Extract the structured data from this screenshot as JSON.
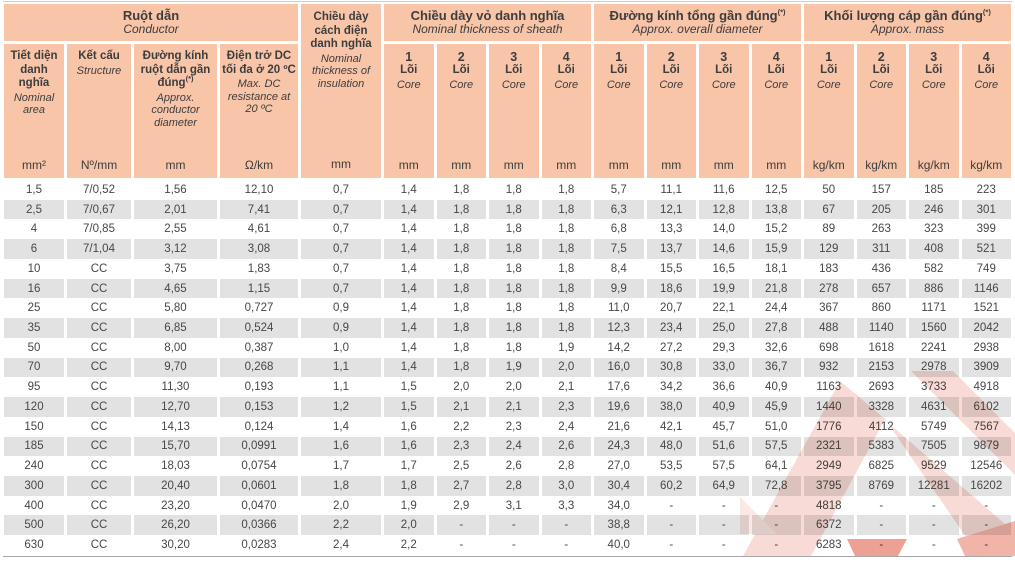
{
  "colors": {
    "header_bg": "#f8c5a9",
    "row_alt_bg": "#e2e2e2",
    "text": "#474747",
    "watermark_light": "#f8dbd6",
    "watermark_red": "#eda094"
  },
  "header": {
    "conductor_group": {
      "vi": "Ruột dẫn",
      "en": "Conductor"
    },
    "insulation": {
      "vi": "Chiều dày cách điện danh nghĩa",
      "en": "Nominal thickness of insulation",
      "unit": "mm"
    },
    "sheath_group": {
      "vi": "Chiều dày vỏ danh nghĩa",
      "en": "Nominal thickness of sheath"
    },
    "diameter_group": {
      "vi": "Đường kính tổng gần đúng",
      "sup": "(*)",
      "en": "Approx. overall diameter"
    },
    "mass_group": {
      "vi": "Khối lượng cáp gần đúng",
      "sup": "(*)",
      "en": "Approx. mass"
    },
    "sub": [
      {
        "vi": "Tiết diện danh nghĩa",
        "en": "Nominal area",
        "unit": "mm²"
      },
      {
        "vi": "Kết cấu",
        "en": "Structure",
        "unit": "Nº/mm"
      },
      {
        "vi": "Đường kính ruột dẫn gần đúng",
        "sup": "(*)",
        "en": "Approx. conductor diameter",
        "unit": "mm"
      },
      {
        "vi": "Điện trở DC tối đa ở 20 ºC",
        "en": "Max. DC resistance at 20 ºC",
        "unit": "Ω/km"
      }
    ],
    "core_numbers": [
      "1",
      "2",
      "3",
      "4"
    ],
    "core_label": {
      "vi": "Lõi",
      "en": "Core"
    },
    "core_units": {
      "sheath": "mm",
      "diameter": "mm",
      "mass": "kg/km"
    }
  },
  "rows": [
    [
      "1,5",
      "7/0,52",
      "1,56",
      "12,10",
      "0,7",
      "1,4",
      "1,8",
      "1,8",
      "1,8",
      "5,7",
      "11,1",
      "11,6",
      "12,5",
      "50",
      "157",
      "185",
      "223"
    ],
    [
      "2,5",
      "7/0,67",
      "2,01",
      "7,41",
      "0,7",
      "1,4",
      "1,8",
      "1,8",
      "1,8",
      "6,3",
      "12,1",
      "12,8",
      "13,8",
      "67",
      "205",
      "246",
      "301"
    ],
    [
      "4",
      "7/0,85",
      "2,55",
      "4,61",
      "0,7",
      "1,4",
      "1,8",
      "1,8",
      "1,8",
      "6,8",
      "13,3",
      "14,0",
      "15,2",
      "89",
      "263",
      "323",
      "399"
    ],
    [
      "6",
      "7/1,04",
      "3,12",
      "3,08",
      "0,7",
      "1,4",
      "1,8",
      "1,8",
      "1,8",
      "7,5",
      "13,7",
      "14,6",
      "15,9",
      "129",
      "311",
      "408",
      "521"
    ],
    [
      "10",
      "CC",
      "3,75",
      "1,83",
      "0,7",
      "1,4",
      "1,8",
      "1,8",
      "1,8",
      "8,4",
      "15,5",
      "16,5",
      "18,1",
      "183",
      "436",
      "582",
      "749"
    ],
    [
      "16",
      "CC",
      "4,65",
      "1,15",
      "0,7",
      "1,4",
      "1,8",
      "1,8",
      "1,8",
      "9,9",
      "18,6",
      "19,9",
      "21,8",
      "278",
      "657",
      "886",
      "1146"
    ],
    [
      "25",
      "CC",
      "5,80",
      "0,727",
      "0,9",
      "1,4",
      "1,8",
      "1,8",
      "1,8",
      "11,0",
      "20,7",
      "22,1",
      "24,4",
      "367",
      "860",
      "1171",
      "1521"
    ],
    [
      "35",
      "CC",
      "6,85",
      "0,524",
      "0,9",
      "1,4",
      "1,8",
      "1,8",
      "1,8",
      "12,3",
      "23,4",
      "25,0",
      "27,8",
      "488",
      "1140",
      "1560",
      "2042"
    ],
    [
      "50",
      "CC",
      "8,00",
      "0,387",
      "1,0",
      "1,4",
      "1,8",
      "1,8",
      "1,9",
      "14,2",
      "27,2",
      "29,3",
      "32,6",
      "698",
      "1618",
      "2241",
      "2938"
    ],
    [
      "70",
      "CC",
      "9,70",
      "0,268",
      "1,1",
      "1,4",
      "1,8",
      "1,9",
      "2,0",
      "16,0",
      "30,8",
      "33,0",
      "36,7",
      "932",
      "2153",
      "2978",
      "3909"
    ],
    [
      "95",
      "CC",
      "11,30",
      "0,193",
      "1,1",
      "1,5",
      "2,0",
      "2,0",
      "2,1",
      "17,6",
      "34,2",
      "36,6",
      "40,9",
      "1163",
      "2693",
      "3733",
      "4918"
    ],
    [
      "120",
      "CC",
      "12,70",
      "0,153",
      "1,2",
      "1,5",
      "2,1",
      "2,1",
      "2,3",
      "19,6",
      "38,0",
      "40,9",
      "45,9",
      "1440",
      "3328",
      "4631",
      "6102"
    ],
    [
      "150",
      "CC",
      "14,13",
      "0,124",
      "1,4",
      "1,6",
      "2,2",
      "2,3",
      "2,4",
      "21,6",
      "42,1",
      "45,7",
      "51,0",
      "1776",
      "4112",
      "5749",
      "7567"
    ],
    [
      "185",
      "CC",
      "15,70",
      "0,0991",
      "1,6",
      "1,6",
      "2,3",
      "2,4",
      "2,6",
      "24,3",
      "48,0",
      "51,6",
      "57,5",
      "2321",
      "5383",
      "7505",
      "9879"
    ],
    [
      "240",
      "CC",
      "18,03",
      "0,0754",
      "1,7",
      "1,7",
      "2,5",
      "2,6",
      "2,8",
      "27,0",
      "53,5",
      "57,5",
      "64,1",
      "2949",
      "6825",
      "9529",
      "12546"
    ],
    [
      "300",
      "CC",
      "20,40",
      "0,0601",
      "1,8",
      "1,8",
      "2,7",
      "2,8",
      "3,0",
      "30,4",
      "60,2",
      "64,9",
      "72,8",
      "3795",
      "8769",
      "12281",
      "16202"
    ],
    [
      "400",
      "CC",
      "23,20",
      "0,0470",
      "2,0",
      "1,9",
      "2,9",
      "3,1",
      "3,3",
      "34,0",
      "-",
      "-",
      "-",
      "4818",
      "-",
      "-",
      "-"
    ],
    [
      "500",
      "CC",
      "26,20",
      "0,0366",
      "2,2",
      "2,0",
      "-",
      "-",
      "-",
      "38,8",
      "-",
      "-",
      "-",
      "6372",
      "-",
      "-",
      "-"
    ],
    [
      "630",
      "CC",
      "30,20",
      "0,0283",
      "2,4",
      "2,2",
      "-",
      "-",
      "-",
      "40,0",
      "-",
      "-",
      "-",
      "6283",
      "-",
      "-",
      "-"
    ]
  ]
}
